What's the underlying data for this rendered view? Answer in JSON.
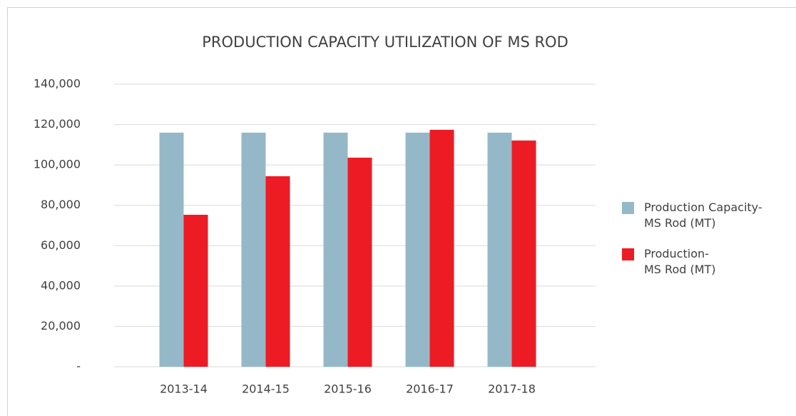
{
  "chart_data": {
    "type": "bar",
    "title": "PRODUCTION CAPACITY UTILIZATION OF MS ROD",
    "categories": [
      "2013-14",
      "2014-15",
      "2015-16",
      "2016-17",
      "2017-18"
    ],
    "series": [
      {
        "name": "Production Capacity-\nMS Rod (MT)",
        "color": "#95b8c9",
        "values": [
          116000,
          116000,
          116000,
          116000,
          116000
        ]
      },
      {
        "name": "Production-\nMS Rod (MT)",
        "color": "#ed1c24",
        "values": [
          75300,
          94400,
          103600,
          117400,
          112100
        ]
      }
    ],
    "ylim": [
      0,
      140000
    ],
    "yticks": [
      {
        "value": 0,
        "label": "-"
      },
      {
        "value": 20000,
        "label": "20,000"
      },
      {
        "value": 40000,
        "label": "40,000"
      },
      {
        "value": 60000,
        "label": "60,000"
      },
      {
        "value": 80000,
        "label": "80,000"
      },
      {
        "value": 100000,
        "label": "100,000"
      },
      {
        "value": 120000,
        "label": "120,000"
      },
      {
        "value": 140000,
        "label": "140,000"
      }
    ],
    "grid": true,
    "legend": "right"
  }
}
